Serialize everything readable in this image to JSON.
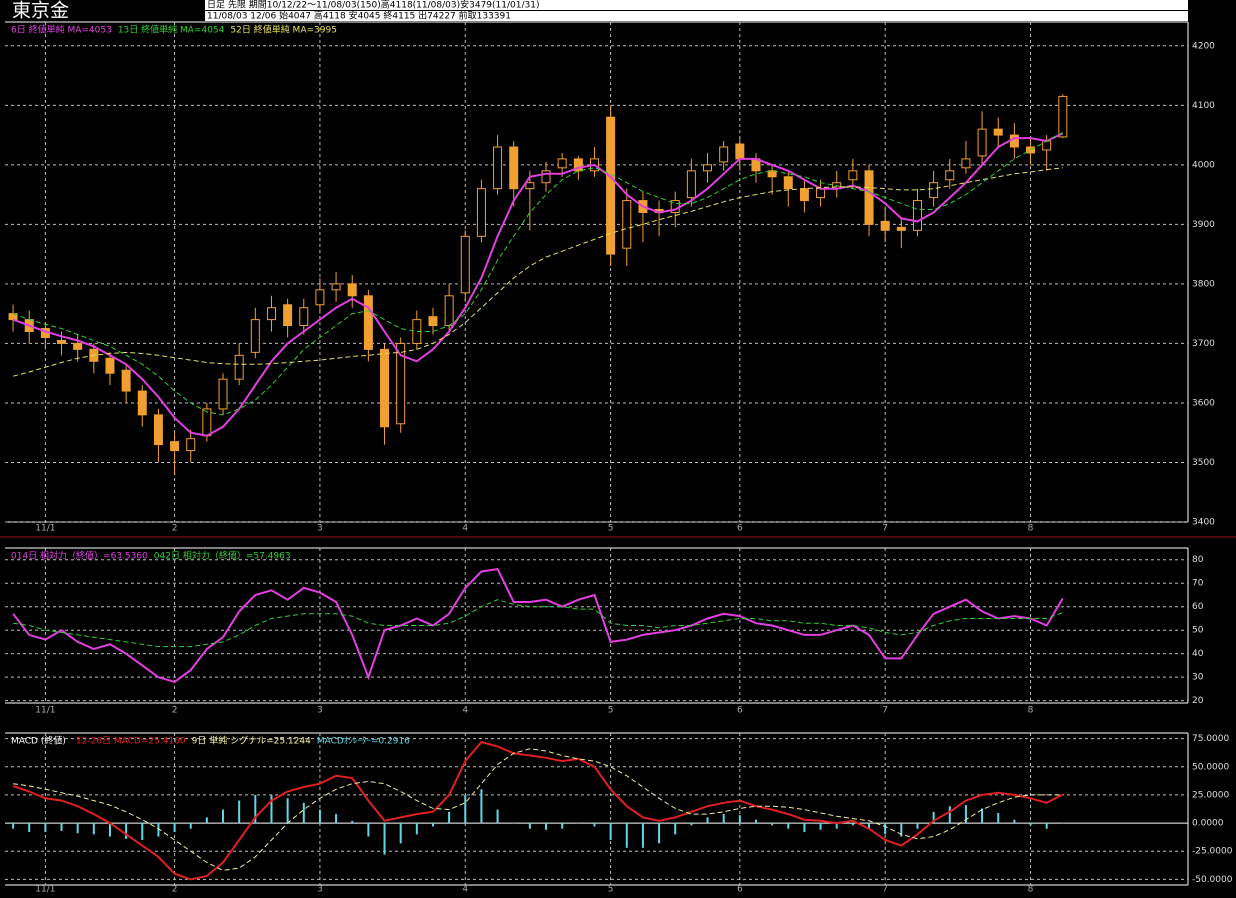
{
  "header": {
    "title": "東京金",
    "info": [
      "日足 先限 期間10/12/22～11/08/03(150)高4118(11/08/03)安3479(11/01/31)",
      "11/08/03 12/06 始4047 高4118 安4045 終4115 出74227 前取133391"
    ]
  },
  "chart_data": [
    {
      "type": "candlestick",
      "up_color": "#f0a030",
      "down_color": "#f0a030",
      "grid": true,
      "categories": [
        null,
        null,
        "11/1",
        null,
        null,
        null,
        null,
        null,
        null,
        null,
        "2",
        null,
        null,
        null,
        null,
        null,
        null,
        null,
        null,
        "3",
        null,
        null,
        null,
        null,
        null,
        null,
        null,
        null,
        "4",
        null,
        null,
        null,
        null,
        null,
        null,
        null,
        null,
        "5",
        null,
        null,
        null,
        null,
        null,
        null,
        null,
        "6",
        null,
        null,
        null,
        null,
        null,
        null,
        null,
        null,
        "7",
        null,
        null,
        null,
        null,
        null,
        null,
        null,
        null,
        "8",
        null,
        null
      ],
      "open": [
        3750,
        3740,
        3725,
        3705,
        3700,
        3690,
        3675,
        3655,
        3620,
        3580,
        3535,
        3520,
        3545,
        3590,
        3640,
        3685,
        3740,
        3765,
        3730,
        3765,
        3790,
        3800,
        3780,
        3690,
        3565,
        3700,
        3745,
        3730,
        3785,
        3880,
        3960,
        4030,
        3960,
        3970,
        3995,
        4010,
        3990,
        4080,
        3860,
        3940,
        3925,
        3920,
        3945,
        3990,
        4005,
        4035,
        4010,
        3990,
        3980,
        3960,
        3945,
        3960,
        3975,
        3990,
        3905,
        3895,
        3890,
        3945,
        3975,
        3995,
        4015,
        4060,
        4050,
        4030,
        4025,
        4047
      ],
      "high": [
        3765,
        3755,
        3735,
        3720,
        3715,
        3700,
        3685,
        3665,
        3630,
        3590,
        3550,
        3555,
        3600,
        3650,
        3700,
        3760,
        3780,
        3775,
        3775,
        3810,
        3820,
        3815,
        3790,
        3700,
        3710,
        3755,
        3760,
        3800,
        3890,
        3975,
        4050,
        4040,
        3990,
        4005,
        4020,
        4015,
        4030,
        4100,
        3960,
        3955,
        3940,
        3955,
        4010,
        4020,
        4040,
        4045,
        4020,
        4000,
        3990,
        3975,
        3975,
        3990,
        4010,
        4000,
        3930,
        3910,
        3960,
        3990,
        4010,
        4040,
        4090,
        4080,
        4070,
        4045,
        4050,
        4118
      ],
      "low": [
        3720,
        3700,
        3690,
        3680,
        3670,
        3650,
        3630,
        3600,
        3560,
        3500,
        3480,
        3500,
        3535,
        3580,
        3630,
        3675,
        3720,
        3710,
        3715,
        3750,
        3770,
        3760,
        3670,
        3530,
        3550,
        3690,
        3715,
        3720,
        3770,
        3870,
        3950,
        3930,
        3890,
        3955,
        3980,
        3975,
        3980,
        3830,
        3830,
        3870,
        3880,
        3895,
        3930,
        3970,
        3990,
        3990,
        3970,
        3950,
        3930,
        3920,
        3930,
        3945,
        3960,
        3880,
        3870,
        3860,
        3880,
        3930,
        3960,
        3985,
        4000,
        4030,
        4010,
        4000,
        3990,
        4045
      ],
      "close": [
        3740,
        3720,
        3710,
        3700,
        3690,
        3670,
        3650,
        3620,
        3580,
        3530,
        3520,
        3540,
        3590,
        3640,
        3680,
        3740,
        3760,
        3730,
        3760,
        3790,
        3800,
        3780,
        3690,
        3560,
        3700,
        3740,
        3730,
        3780,
        3880,
        3960,
        4030,
        3960,
        3970,
        3990,
        4010,
        3990,
        4010,
        3850,
        3940,
        3920,
        3920,
        3940,
        3990,
        4000,
        4030,
        4010,
        3990,
        3980,
        3960,
        3940,
        3960,
        3970,
        3990,
        3900,
        3890,
        3890,
        3940,
        3970,
        3990,
        4010,
        4060,
        4050,
        4030,
        4020,
        4040,
        4115
      ],
      "series": [
        {
          "name": "6日 終値単純 MA=4053",
          "color": "#e040e0",
          "style": "solid",
          "values": [
            3740,
            3730,
            3720,
            3712,
            3705,
            3695,
            3680,
            3665,
            3640,
            3610,
            3575,
            3550,
            3545,
            3560,
            3590,
            3630,
            3670,
            3700,
            3720,
            3740,
            3760,
            3775,
            3760,
            3720,
            3680,
            3670,
            3690,
            3720,
            3760,
            3810,
            3880,
            3940,
            3980,
            3985,
            3985,
            3995,
            4000,
            3980,
            3950,
            3930,
            3920,
            3925,
            3940,
            3960,
            3985,
            4010,
            4010,
            4000,
            3990,
            3975,
            3960,
            3960,
            3965,
            3955,
            3935,
            3910,
            3905,
            3920,
            3945,
            3970,
            4000,
            4030,
            4045,
            4045,
            4040,
            4053
          ]
        },
        {
          "name": "13日 終値単純 MA=4054",
          "color": "#30d030",
          "style": "dashed",
          "values": [
            3750,
            3740,
            3732,
            3725,
            3715,
            3705,
            3695,
            3680,
            3665,
            3645,
            3620,
            3600,
            3585,
            3580,
            3590,
            3605,
            3630,
            3660,
            3690,
            3710,
            3730,
            3750,
            3755,
            3740,
            3725,
            3720,
            3720,
            3730,
            3750,
            3790,
            3840,
            3880,
            3920,
            3950,
            3975,
            3990,
            3995,
            3985,
            3970,
            3955,
            3945,
            3935,
            3935,
            3945,
            3960,
            3975,
            3985,
            3990,
            3985,
            3980,
            3970,
            3965,
            3960,
            3955,
            3945,
            3935,
            3925,
            3925,
            3935,
            3950,
            3970,
            3990,
            4010,
            4025,
            4040,
            4054
          ]
        },
        {
          "name": "52日 終値単純 MA=3995",
          "color": "#e8e060",
          "style": "dashed",
          "values": [
            3645,
            3652,
            3660,
            3668,
            3675,
            3680,
            3683,
            3685,
            3683,
            3680,
            3676,
            3672,
            3668,
            3666,
            3665,
            3665,
            3666,
            3668,
            3670,
            3672,
            3675,
            3678,
            3680,
            3683,
            3685,
            3690,
            3700,
            3715,
            3735,
            3760,
            3785,
            3810,
            3830,
            3845,
            3855,
            3865,
            3875,
            3885,
            3893,
            3900,
            3908,
            3915,
            3922,
            3930,
            3938,
            3945,
            3950,
            3955,
            3958,
            3960,
            3962,
            3963,
            3963,
            3962,
            3960,
            3958,
            3958,
            3960,
            3965,
            3970,
            3975,
            3980,
            3985,
            3988,
            3992,
            3995
          ]
        }
      ],
      "ylim": [
        3400,
        4240
      ],
      "yticks": [
        3400,
        3500,
        3600,
        3700,
        3800,
        3900,
        4000,
        4100,
        4200
      ]
    },
    {
      "type": "line",
      "grid": true,
      "series": [
        {
          "name": "014日 相対力（終値）=63.5360",
          "color": "#e040e0",
          "style": "solid",
          "values": [
            57,
            48,
            46,
            50,
            45,
            42,
            44,
            40,
            35,
            30,
            28,
            33,
            42,
            47,
            58,
            65,
            67,
            63,
            68,
            66,
            62,
            48,
            30,
            50,
            52,
            55,
            52,
            57,
            68,
            75,
            76,
            62,
            62,
            63,
            60,
            63,
            65,
            45,
            46,
            48,
            49,
            50,
            52,
            55,
            57,
            56,
            53,
            52,
            50,
            48,
            48,
            50,
            52,
            48,
            38,
            38,
            48,
            57,
            60,
            63,
            58,
            55,
            56,
            55,
            52,
            63.536
          ]
        },
        {
          "name": "042日 相対力（終値）=57.4963",
          "color": "#30d030",
          "style": "dashed",
          "values": [
            53,
            52,
            50,
            49,
            48,
            47,
            46,
            45,
            44,
            43,
            43,
            43,
            44,
            45,
            48,
            52,
            55,
            56,
            57,
            57,
            57,
            56,
            53,
            52,
            52,
            52,
            52,
            53,
            56,
            60,
            63,
            61,
            60,
            60,
            60,
            59,
            59,
            53,
            52,
            52,
            51,
            52,
            52,
            53,
            54,
            55,
            55,
            54,
            54,
            53,
            53,
            52,
            52,
            51,
            49,
            48,
            49,
            52,
            54,
            55,
            55,
            55,
            55,
            55,
            55,
            57.4963
          ]
        }
      ],
      "ylim": [
        19,
        85
      ],
      "yticks": [
        20,
        30,
        40,
        50,
        60,
        70,
        80
      ]
    },
    {
      "type": "line",
      "grid": true,
      "title": "MACD (終値)",
      "series": [
        {
          "name": "12-26日 MACD=25.4160",
          "color": "#e02020",
          "style": "thick",
          "values": [
            33,
            28,
            22,
            20,
            15,
            8,
            0,
            -10,
            -20,
            -30,
            -45,
            -50,
            -47,
            -35,
            -15,
            5,
            20,
            28,
            32,
            35,
            42,
            40,
            20,
            2,
            5,
            8,
            10,
            25,
            55,
            72,
            68,
            62,
            60,
            58,
            55,
            57,
            50,
            30,
            15,
            5,
            2,
            5,
            10,
            15,
            18,
            20,
            15,
            12,
            8,
            3,
            2,
            0,
            2,
            -5,
            -15,
            -20,
            -10,
            2,
            10,
            20,
            25,
            27,
            25,
            22,
            18,
            25.416
          ]
        },
        {
          "name": "9日 単純 シグナル=25.1244",
          "color": "#f0f0a0",
          "style": "dashed",
          "values": [
            35,
            33,
            30,
            27,
            24,
            20,
            16,
            10,
            3,
            -5,
            -15,
            -25,
            -35,
            -42,
            -40,
            -30,
            -15,
            0,
            12,
            22,
            30,
            35,
            37,
            35,
            28,
            20,
            13,
            12,
            18,
            35,
            52,
            62,
            66,
            64,
            60,
            57,
            55,
            50,
            42,
            32,
            22,
            13,
            8,
            8,
            10,
            13,
            15,
            15,
            14,
            12,
            9,
            6,
            4,
            2,
            -3,
            -10,
            -14,
            -12,
            -6,
            3,
            12,
            18,
            23,
            25,
            25,
            25.1244
          ]
        },
        {
          "name": "MACDｵｼﾚｰﾀｰ=0.2916",
          "color": "#60d8e8",
          "style": "bar",
          "values": [
            -5,
            -8,
            -8,
            -7,
            -9,
            -10,
            -12,
            -14,
            -15,
            -12,
            -8,
            -5,
            5,
            12,
            20,
            25,
            25,
            22,
            18,
            12,
            8,
            2,
            -12,
            -28,
            -18,
            -10,
            -3,
            10,
            25,
            30,
            12,
            0,
            -5,
            -6,
            -5,
            0,
            -3,
            -15,
            -22,
            -22,
            -18,
            -10,
            -2,
            5,
            8,
            7,
            3,
            -2,
            -5,
            -8,
            -6,
            -5,
            -2,
            -5,
            -10,
            -12,
            -5,
            10,
            15,
            16,
            13,
            9,
            3,
            -2,
            -5,
            0.2916
          ]
        }
      ],
      "ylim": [
        -55,
        80
      ],
      "yticks": [
        {
          "value": 75,
          "label": "75.0000"
        },
        {
          "value": 50,
          "label": "50.0000"
        },
        {
          "value": 25,
          "label": "25.0000"
        },
        {
          "value": 0,
          "label": "0.0000"
        },
        {
          "value": -25,
          "label": "-25.0000"
        },
        {
          "value": -50,
          "label": "-50.0000"
        }
      ]
    }
  ]
}
